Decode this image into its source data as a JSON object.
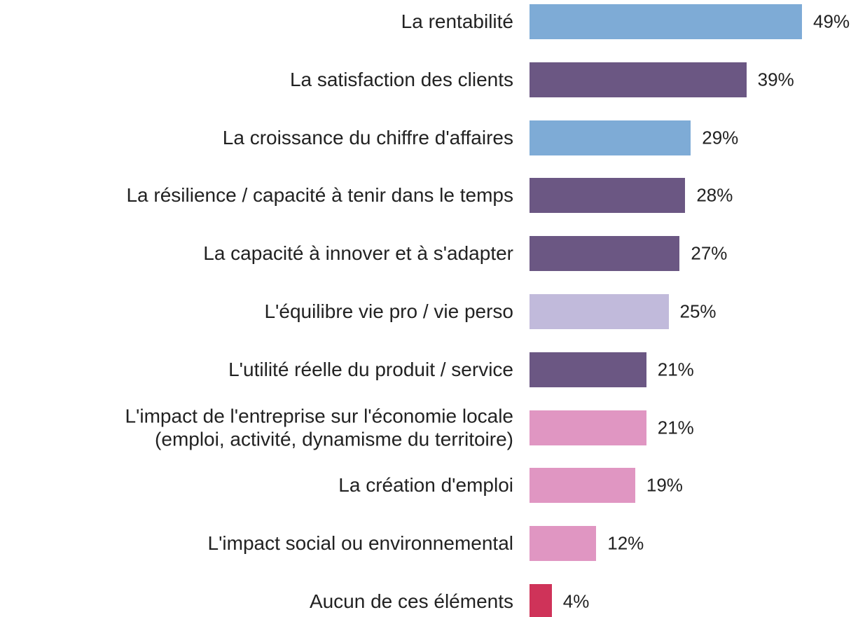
{
  "chart_data": {
    "type": "bar",
    "orientation": "horizontal",
    "categories": [
      "La rentabilité",
      "La satisfaction des clients",
      "La croissance du chiffre d'affaires",
      "La résilience / capacité à tenir dans le temps",
      "La capacité à innover et à s'adapter",
      "L'équilibre vie pro / vie perso",
      "L'utilité réelle du produit / service",
      "L'impact de l'entreprise sur l'économie locale\n(emploi, activité, dynamisme du territoire)",
      "La création d'emploi",
      "L'impact social ou environnemental",
      "Aucun de ces éléments"
    ],
    "values": [
      49,
      39,
      29,
      28,
      27,
      25,
      21,
      21,
      19,
      12,
      4
    ],
    "value_labels": [
      "49%",
      "39%",
      "29%",
      "28%",
      "27%",
      "25%",
      "21%",
      "21%",
      "19%",
      "12%",
      "4%"
    ],
    "colors": [
      "#7eabd6",
      "#6b5783",
      "#7eabd6",
      "#6b5783",
      "#6b5783",
      "#c1badb",
      "#6b5783",
      "#e096c2",
      "#e096c2",
      "#e096c2",
      "#cf3359"
    ]
  }
}
